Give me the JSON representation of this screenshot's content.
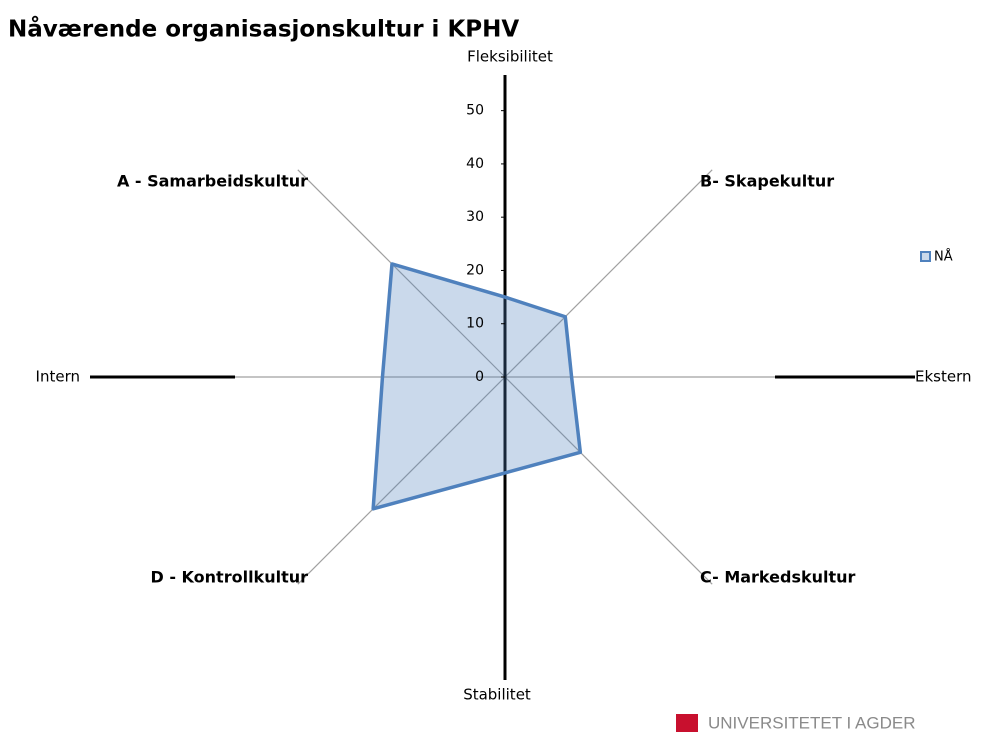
{
  "chart_data": {
    "type": "radar",
    "title": "Nåværende organisasjonskultur i KPHV",
    "categories": [
      "Fleksibilitet",
      "B- Skapekultur",
      "Ekstern",
      "C- Markedskultur",
      "Stabilitet",
      "D - Kontrollkultur",
      "Intern",
      "A - Samarbeidskultur"
    ],
    "series": [
      {
        "name": "NÅ",
        "color": "#4f81bd",
        "values": [
          15,
          16,
          12.5,
          20,
          18,
          35,
          23,
          30
        ]
      }
    ],
    "ylim": [
      0,
      55
    ],
    "yticks": [
      0,
      10,
      20,
      30,
      40,
      50
    ],
    "legend": "right"
  },
  "logo": {
    "text": "UNIVERSITETET I AGDER"
  }
}
